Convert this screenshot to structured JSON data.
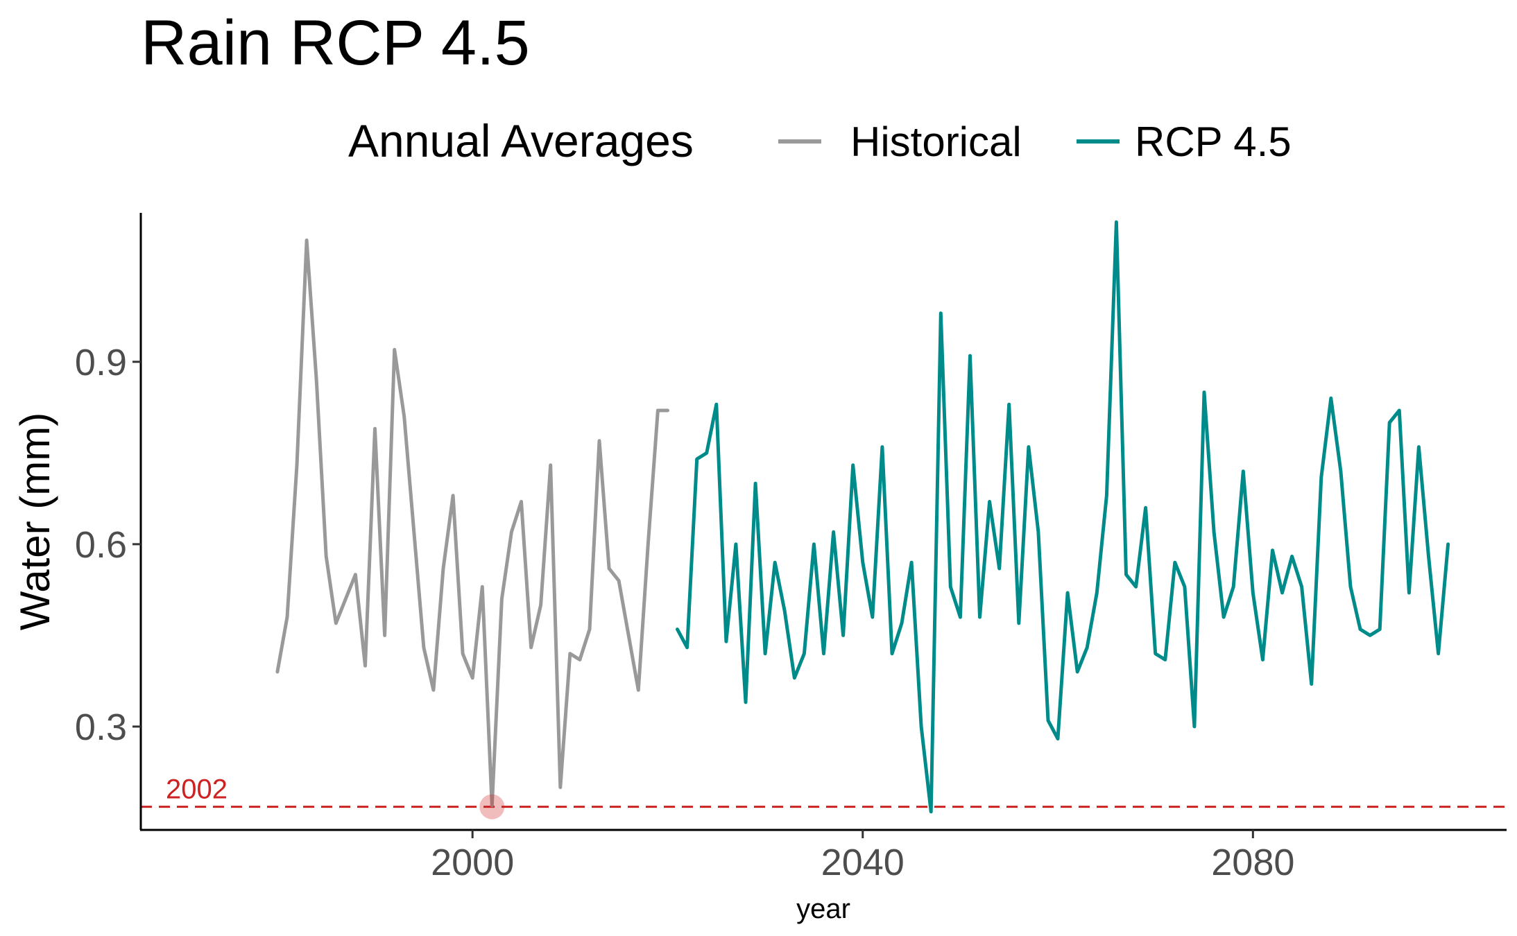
{
  "chart_data": {
    "type": "line",
    "title": "Rain RCP 4.5",
    "xlabel": "year",
    "ylabel": "Water (mm)",
    "legend": {
      "title": "Annual Averages",
      "position": "top",
      "entries": [
        "Historical",
        "RCP 4.5"
      ]
    },
    "xlim": [
      1966,
      2106
    ],
    "ylim": [
      0.13,
      1.145
    ],
    "x_ticks": [
      2000,
      2040,
      2080
    ],
    "y_ticks": [
      0.3,
      0.6,
      0.9
    ],
    "x_tick_labels": [
      "2000",
      "2040",
      "2080"
    ],
    "y_tick_labels": [
      "0.3",
      "0.6",
      "0.9"
    ],
    "grid": false,
    "series": [
      {
        "name": "Historical",
        "color": "#999999",
        "x": [
          1980,
          1981,
          1982,
          1983,
          1984,
          1985,
          1986,
          1987,
          1988,
          1989,
          1990,
          1991,
          1992,
          1993,
          1994,
          1995,
          1996,
          1997,
          1998,
          1999,
          2000,
          2001,
          2002,
          2003,
          2004,
          2005,
          2006,
          2007,
          2008,
          2009,
          2010,
          2011,
          2012,
          2013,
          2014,
          2015,
          2016,
          2017,
          2018,
          2019,
          2020
        ],
        "values": [
          0.39,
          0.48,
          0.73,
          1.1,
          0.87,
          0.58,
          0.47,
          0.51,
          0.55,
          0.4,
          0.79,
          0.45,
          0.92,
          0.81,
          0.62,
          0.43,
          0.36,
          0.56,
          0.68,
          0.42,
          0.38,
          0.53,
          0.17,
          0.51,
          0.62,
          0.67,
          0.43,
          0.5,
          0.73,
          0.2,
          0.42,
          0.41,
          0.46,
          0.77,
          0.56,
          0.54,
          0.45,
          0.36,
          0.6,
          0.82,
          0.82
        ]
      },
      {
        "name": "RCP 4.5",
        "color": "#008B8B",
        "x": [
          2021,
          2022,
          2023,
          2024,
          2025,
          2026,
          2027,
          2028,
          2029,
          2030,
          2031,
          2032,
          2033,
          2034,
          2035,
          2036,
          2037,
          2038,
          2039,
          2040,
          2041,
          2042,
          2043,
          2044,
          2045,
          2046,
          2047,
          2048,
          2049,
          2050,
          2051,
          2052,
          2053,
          2054,
          2055,
          2056,
          2057,
          2058,
          2059,
          2060,
          2061,
          2062,
          2063,
          2064,
          2065,
          2066,
          2067,
          2068,
          2069,
          2070,
          2071,
          2072,
          2073,
          2074,
          2075,
          2076,
          2077,
          2078,
          2079,
          2080,
          2081,
          2082,
          2083,
          2084,
          2085,
          2086,
          2087,
          2088,
          2089,
          2090,
          2091,
          2092,
          2093,
          2094,
          2095,
          2096,
          2097,
          2098,
          2099,
          2100
        ],
        "values": [
          0.46,
          0.43,
          0.74,
          0.75,
          0.83,
          0.44,
          0.6,
          0.34,
          0.7,
          0.42,
          0.57,
          0.49,
          0.38,
          0.42,
          0.6,
          0.42,
          0.62,
          0.45,
          0.73,
          0.57,
          0.48,
          0.76,
          0.42,
          0.47,
          0.57,
          0.3,
          0.16,
          0.98,
          0.53,
          0.48,
          0.91,
          0.48,
          0.67,
          0.56,
          0.83,
          0.47,
          0.76,
          0.62,
          0.31,
          0.28,
          0.52,
          0.39,
          0.43,
          0.52,
          0.68,
          1.13,
          0.55,
          0.53,
          0.66,
          0.42,
          0.41,
          0.57,
          0.53,
          0.3,
          0.85,
          0.62,
          0.48,
          0.53,
          0.72,
          0.52,
          0.41,
          0.59,
          0.52,
          0.58,
          0.53,
          0.37,
          0.71,
          0.84,
          0.72,
          0.53,
          0.46,
          0.45,
          0.46,
          0.8,
          0.82,
          0.52,
          0.76,
          0.58,
          0.42,
          0.6
        ]
      }
    ],
    "reference_line": {
      "y": 0.168,
      "color": "#CC2222",
      "style": "dashed",
      "label": "2002",
      "marker_x": 2002
    }
  }
}
